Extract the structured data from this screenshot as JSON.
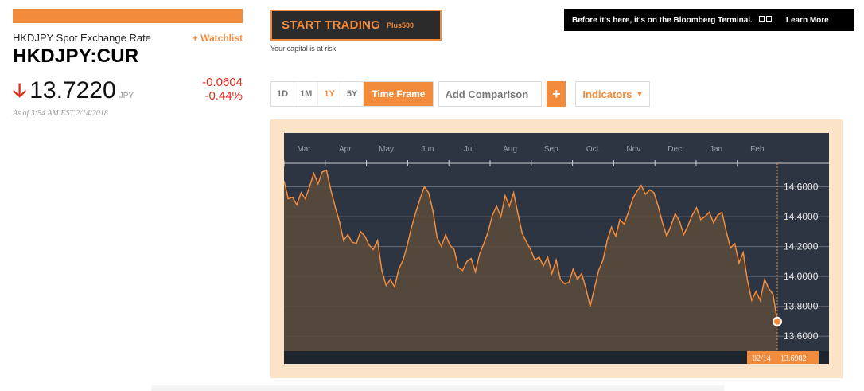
{
  "left_panel": {
    "name": "HKDJPY Spot Exchange Rate",
    "watchlist": "+ Watchlist",
    "ticker": "HKDJPY:CUR",
    "direction_icon": "down-arrow-icon",
    "price": "13.7220",
    "currency": "JPY",
    "change": "-0.0604",
    "change_pct": "-0.44%",
    "as_of": "As of 3:54 AM EST 2/14/2018"
  },
  "ad": {
    "label": "START TRADING",
    "brand": "Plus500",
    "note": "Your capital is at risk"
  },
  "banner": {
    "text": "Before it's here, it's on the Bloomberg Terminal.",
    "icon": "terminal-icon",
    "link": "Learn More"
  },
  "controls": {
    "ranges": [
      "1D",
      "1M",
      "1Y",
      "5Y"
    ],
    "active_range": "1Y",
    "timeframe": "Time Frame",
    "comparison_placeholder": "Add Comparison",
    "plus_label": "+",
    "indicators": "Indicators"
  },
  "colors": {
    "accent": "#f38b3c",
    "negative": "#e0301e",
    "chart_bg": "#2e3542",
    "frame_bg": "#fbe3c8"
  },
  "chart_data": {
    "type": "area",
    "title": "",
    "xlabel": "",
    "ylabel": "",
    "x_ticks": [
      "Mar",
      "Apr",
      "May",
      "Jun",
      "Jul",
      "Aug",
      "Sep",
      "Oct",
      "Nov",
      "Dec",
      "Jan",
      "Feb"
    ],
    "y_ticks": [
      "14.6000",
      "14.4000",
      "14.2000",
      "14.0000",
      "13.8000",
      "13.6000"
    ],
    "ylim": [
      13.5,
      14.8
    ],
    "grid": true,
    "axis_position": "right",
    "last_point": {
      "date": "02/14",
      "value": "13.6982"
    },
    "series": [
      {
        "values": [
          14.64,
          14.52,
          14.53,
          14.48,
          14.56,
          14.52,
          14.6,
          14.69,
          14.62,
          14.7,
          14.71,
          14.58,
          14.47,
          14.37,
          14.24,
          14.28,
          14.23,
          14.22,
          14.3,
          14.27,
          14.21,
          14.18,
          14.24,
          14.04,
          13.94,
          13.98,
          13.93,
          14.05,
          14.11,
          14.21,
          14.33,
          14.43,
          14.52,
          14.6,
          14.56,
          14.44,
          14.26,
          14.2,
          14.28,
          14.21,
          14.18,
          14.06,
          14.04,
          14.1,
          14.12,
          14.03,
          14.15,
          14.22,
          14.3,
          14.41,
          14.47,
          14.4,
          14.54,
          14.47,
          14.56,
          14.42,
          14.29,
          14.23,
          14.18,
          14.11,
          14.13,
          14.07,
          14.13,
          14.02,
          14.11,
          13.98,
          13.95,
          13.96,
          14.05,
          13.98,
          14.02,
          13.92,
          13.8,
          13.92,
          14.04,
          14.11,
          14.24,
          14.33,
          14.27,
          14.38,
          14.35,
          14.43,
          14.52,
          14.57,
          14.61,
          14.55,
          14.58,
          14.56,
          14.47,
          14.36,
          14.27,
          14.34,
          14.42,
          14.37,
          14.28,
          14.34,
          14.41,
          14.46,
          14.38,
          14.4,
          14.43,
          14.36,
          14.41,
          14.43,
          14.3,
          14.19,
          14.22,
          14.09,
          14.16,
          13.97,
          13.84,
          13.9,
          13.84,
          13.98,
          13.92,
          13.88,
          13.6982
        ]
      }
    ]
  }
}
